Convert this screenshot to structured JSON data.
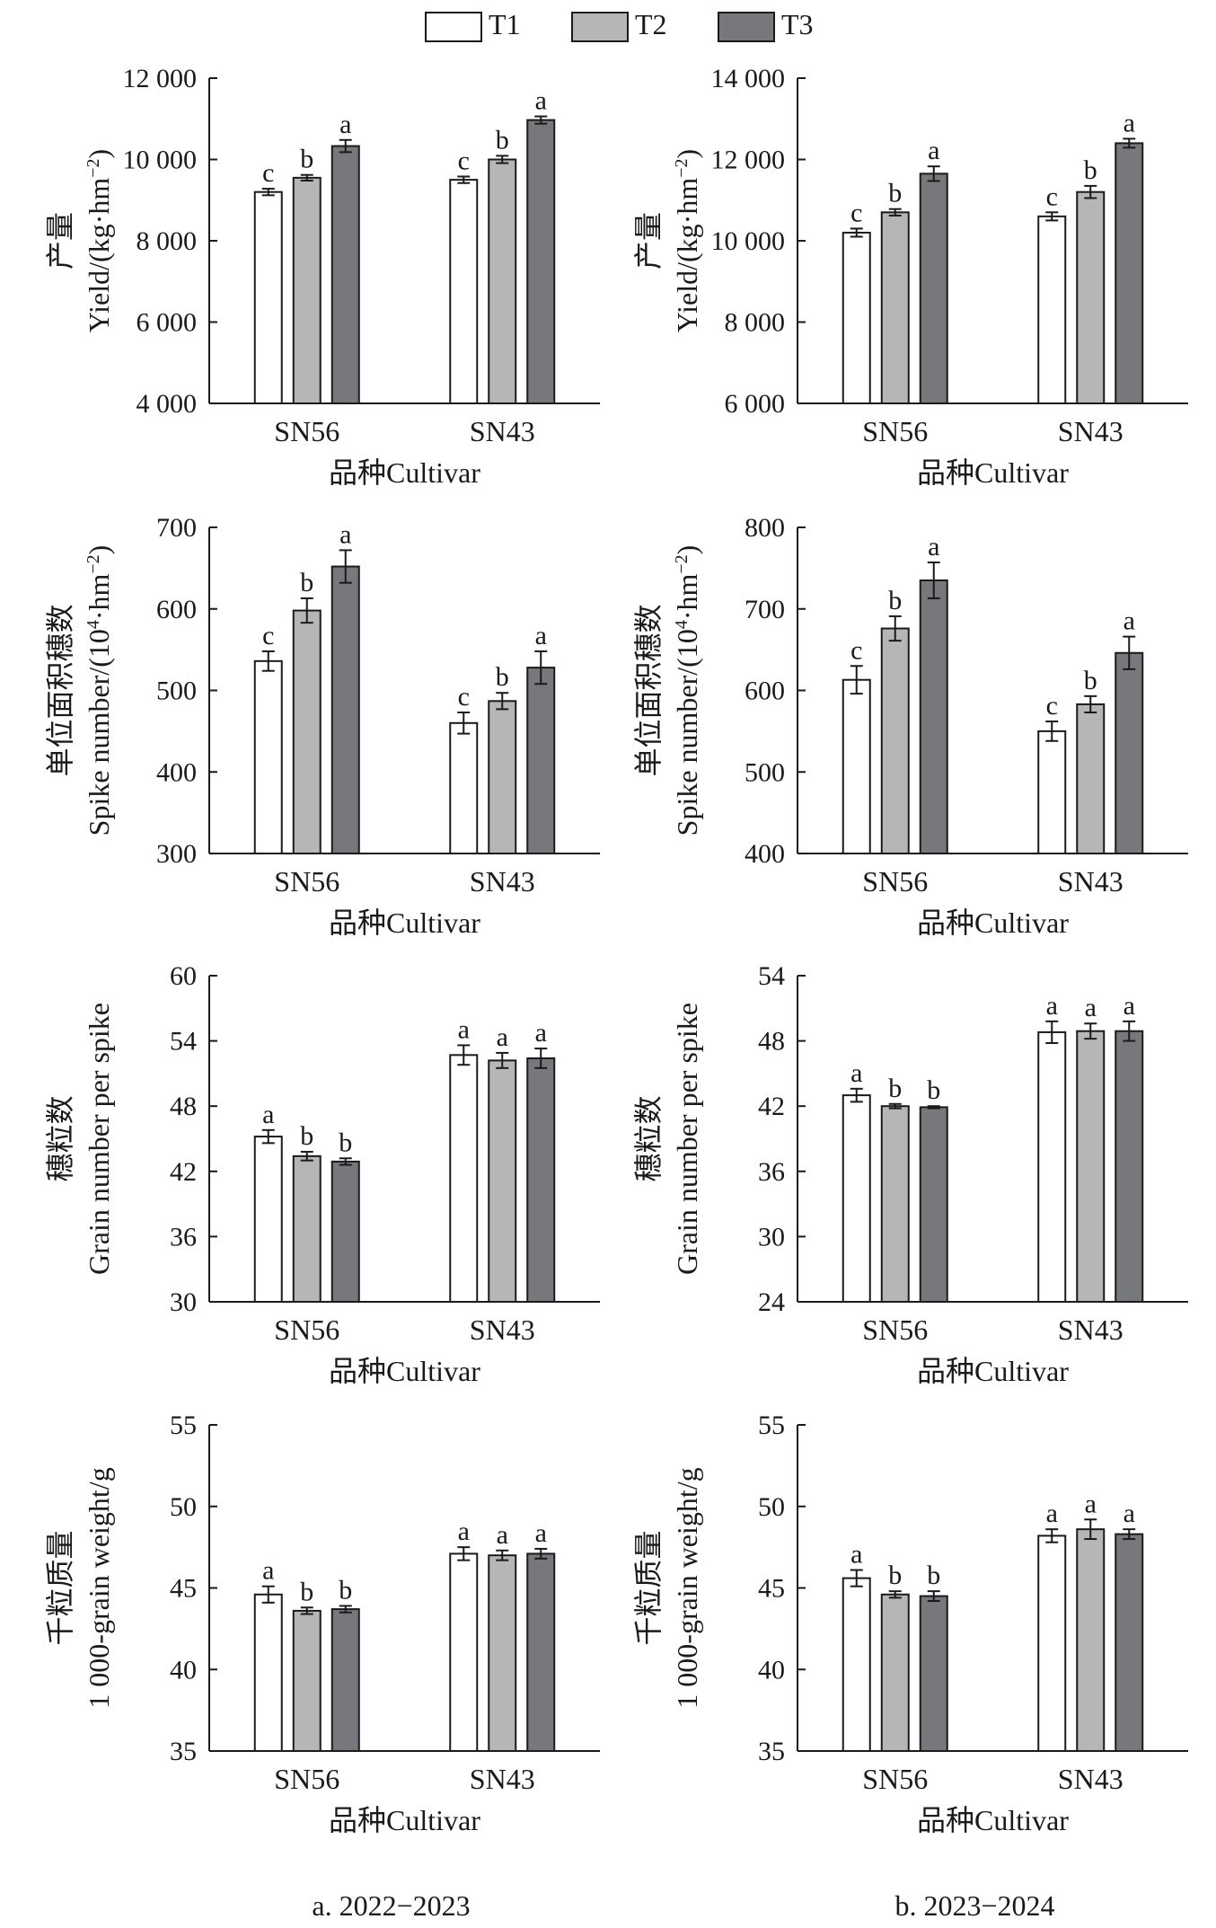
{
  "legend": [
    {
      "label": "T1",
      "color": "#ffffff"
    },
    {
      "label": "T2",
      "color": "#b5b6b8"
    },
    {
      "label": "T3",
      "color": "#77787b"
    }
  ],
  "columns": [
    {
      "caption": "a. 2022−2023"
    },
    {
      "caption": "b. 2023−2024"
    }
  ],
  "chart_data": [
    {
      "type": "bar",
      "ylabel_cn": "产量",
      "ylabel_en": "Yield/(kg·hm",
      "ylabel_sup": "−2",
      "ylabel_tail": ")",
      "xlabel": "品种Cultivar",
      "categories": [
        "SN56",
        "SN43"
      ],
      "ylim": [
        4000,
        12000
      ],
      "yticks": [
        4000,
        6000,
        8000,
        10000,
        12000
      ],
      "ytick_labels": [
        "4 000",
        "6 000",
        "8 000",
        "10 000",
        "12 000"
      ],
      "series": [
        {
          "name": "T1",
          "values": [
            9200,
            9500
          ],
          "errors": [
            80,
            80
          ],
          "letters": [
            "c",
            "c"
          ]
        },
        {
          "name": "T2",
          "values": [
            9550,
            10000
          ],
          "errors": [
            70,
            90
          ],
          "letters": [
            "b",
            "b"
          ]
        },
        {
          "name": "T3",
          "values": [
            10330,
            10970
          ],
          "errors": [
            150,
            90
          ],
          "letters": [
            "a",
            "a"
          ]
        }
      ]
    },
    {
      "type": "bar",
      "ylabel_cn": "产量",
      "ylabel_en": "Yield/(kg·hm",
      "ylabel_sup": "−2",
      "ylabel_tail": ")",
      "xlabel": "品种Cultivar",
      "categories": [
        "SN56",
        "SN43"
      ],
      "ylim": [
        6000,
        14000
      ],
      "yticks": [
        6000,
        8000,
        10000,
        12000,
        14000
      ],
      "ytick_labels": [
        "6 000",
        "8 000",
        "10 000",
        "12 000",
        "14 000"
      ],
      "series": [
        {
          "name": "T1",
          "values": [
            10200,
            10600
          ],
          "errors": [
            100,
            100
          ],
          "letters": [
            "c",
            "c"
          ]
        },
        {
          "name": "T2",
          "values": [
            10700,
            11200
          ],
          "errors": [
            80,
            150
          ],
          "letters": [
            "b",
            "b"
          ]
        },
        {
          "name": "T3",
          "values": [
            11650,
            12400
          ],
          "errors": [
            180,
            110
          ],
          "letters": [
            "a",
            "a"
          ]
        }
      ]
    },
    {
      "type": "bar",
      "ylabel_cn": "单位面积穗数",
      "ylabel_en": "Spike number/(10",
      "ylabel_sup": "4",
      "ylabel_tail": "·hm",
      "ylabel_sup2": "−2",
      "ylabel_tail2": ")",
      "xlabel": "品种Cultivar",
      "categories": [
        "SN56",
        "SN43"
      ],
      "ylim": [
        300,
        700
      ],
      "yticks": [
        300,
        400,
        500,
        600,
        700
      ],
      "ytick_labels": [
        "300",
        "400",
        "500",
        "600",
        "700"
      ],
      "series": [
        {
          "name": "T1",
          "values": [
            536,
            460
          ],
          "errors": [
            12,
            13
          ],
          "letters": [
            "c",
            "c"
          ]
        },
        {
          "name": "T2",
          "values": [
            598,
            487
          ],
          "errors": [
            15,
            10
          ],
          "letters": [
            "b",
            "b"
          ]
        },
        {
          "name": "T3",
          "values": [
            652,
            528
          ],
          "errors": [
            20,
            20
          ],
          "letters": [
            "a",
            "a"
          ]
        }
      ]
    },
    {
      "type": "bar",
      "ylabel_cn": "单位面积穗数",
      "ylabel_en": "Spike number/(10",
      "ylabel_sup": "4",
      "ylabel_tail": "·hm",
      "ylabel_sup2": "−2",
      "ylabel_tail2": ")",
      "xlabel": "品种Cultivar",
      "categories": [
        "SN56",
        "SN43"
      ],
      "ylim": [
        400,
        800
      ],
      "yticks": [
        400,
        500,
        600,
        700,
        800
      ],
      "ytick_labels": [
        "400",
        "500",
        "600",
        "700",
        "800"
      ],
      "series": [
        {
          "name": "T1",
          "values": [
            613,
            550
          ],
          "errors": [
            17,
            12
          ],
          "letters": [
            "c",
            "c"
          ]
        },
        {
          "name": "T2",
          "values": [
            676,
            583
          ],
          "errors": [
            15,
            10
          ],
          "letters": [
            "b",
            "b"
          ]
        },
        {
          "name": "T3",
          "values": [
            735,
            646
          ],
          "errors": [
            22,
            20
          ],
          "letters": [
            "a",
            "a"
          ]
        }
      ]
    },
    {
      "type": "bar",
      "ylabel_cn": "穗粒数",
      "ylabel_en": "Grain number per spike",
      "xlabel": "品种Cultivar",
      "categories": [
        "SN56",
        "SN43"
      ],
      "ylim": [
        30,
        60
      ],
      "yticks": [
        30,
        36,
        42,
        48,
        54,
        60
      ],
      "ytick_labels": [
        "30",
        "36",
        "42",
        "48",
        "54",
        "60"
      ],
      "series": [
        {
          "name": "T1",
          "values": [
            45.2,
            52.7
          ],
          "errors": [
            0.6,
            0.9
          ],
          "letters": [
            "a",
            "a"
          ]
        },
        {
          "name": "T2",
          "values": [
            43.4,
            52.2
          ],
          "errors": [
            0.4,
            0.7
          ],
          "letters": [
            "b",
            "a"
          ]
        },
        {
          "name": "T3",
          "values": [
            42.9,
            52.4
          ],
          "errors": [
            0.3,
            0.9
          ],
          "letters": [
            "b",
            "a"
          ]
        }
      ]
    },
    {
      "type": "bar",
      "ylabel_cn": "穗粒数",
      "ylabel_en": "Grain number per spike",
      "xlabel": "品种Cultivar",
      "categories": [
        "SN56",
        "SN43"
      ],
      "ylim": [
        24,
        54
      ],
      "yticks": [
        24,
        30,
        36,
        42,
        48,
        54
      ],
      "ytick_labels": [
        "24",
        "30",
        "36",
        "42",
        "48",
        "54"
      ],
      "series": [
        {
          "name": "T1",
          "values": [
            43.0,
            48.8
          ],
          "errors": [
            0.6,
            1.0
          ],
          "letters": [
            "a",
            "a"
          ]
        },
        {
          "name": "T2",
          "values": [
            42.0,
            48.9
          ],
          "errors": [
            0.2,
            0.7
          ],
          "letters": [
            "b",
            "a"
          ]
        },
        {
          "name": "T3",
          "values": [
            41.9,
            48.9
          ],
          "errors": [
            0.1,
            0.9
          ],
          "letters": [
            "b",
            "a"
          ]
        }
      ]
    },
    {
      "type": "bar",
      "ylabel_cn": "千粒质量",
      "ylabel_en": "1 000-grain weight/g",
      "xlabel": "品种Cultivar",
      "categories": [
        "SN56",
        "SN43"
      ],
      "ylim": [
        35,
        55
      ],
      "yticks": [
        35,
        40,
        45,
        50,
        55
      ],
      "ytick_labels": [
        "35",
        "40",
        "45",
        "50",
        "55"
      ],
      "series": [
        {
          "name": "T1",
          "values": [
            44.6,
            47.1
          ],
          "errors": [
            0.5,
            0.4
          ],
          "letters": [
            "a",
            "a"
          ]
        },
        {
          "name": "T2",
          "values": [
            43.6,
            47.0
          ],
          "errors": [
            0.2,
            0.3
          ],
          "letters": [
            "b",
            "a"
          ]
        },
        {
          "name": "T3",
          "values": [
            43.7,
            47.1
          ],
          "errors": [
            0.2,
            0.3
          ],
          "letters": [
            "b",
            "a"
          ]
        }
      ]
    },
    {
      "type": "bar",
      "ylabel_cn": "千粒质量",
      "ylabel_en": "1 000-grain weight/g",
      "xlabel": "品种Cultivar",
      "categories": [
        "SN56",
        "SN43"
      ],
      "ylim": [
        35,
        55
      ],
      "yticks": [
        35,
        40,
        45,
        50,
        55
      ],
      "ytick_labels": [
        "35",
        "40",
        "45",
        "50",
        "55"
      ],
      "series": [
        {
          "name": "T1",
          "values": [
            45.6,
            48.2
          ],
          "errors": [
            0.5,
            0.4
          ],
          "letters": [
            "a",
            "a"
          ]
        },
        {
          "name": "T2",
          "values": [
            44.6,
            48.6
          ],
          "errors": [
            0.2,
            0.6
          ],
          "letters": [
            "b",
            "a"
          ]
        },
        {
          "name": "T3",
          "values": [
            44.5,
            48.3
          ],
          "errors": [
            0.3,
            0.3
          ],
          "letters": [
            "b",
            "a"
          ]
        }
      ]
    }
  ]
}
